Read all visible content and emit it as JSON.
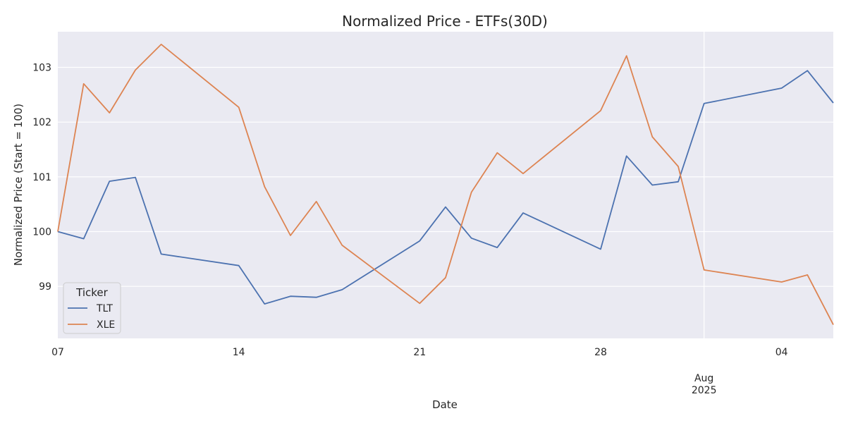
{
  "chart_data": {
    "type": "line",
    "title": "Normalized Price - ETFs(30D)",
    "xlabel": "Date",
    "ylabel": "Normalized Price (Start = 100)",
    "x": [
      "2025-07-07",
      "2025-07-08",
      "2025-07-09",
      "2025-07-10",
      "2025-07-11",
      "2025-07-14",
      "2025-07-15",
      "2025-07-16",
      "2025-07-17",
      "2025-07-18",
      "2025-07-21",
      "2025-07-22",
      "2025-07-23",
      "2025-07-24",
      "2025-07-25",
      "2025-07-28",
      "2025-07-29",
      "2025-07-30",
      "2025-07-31",
      "2025-08-01",
      "2025-08-04",
      "2025-08-05",
      "2025-08-06"
    ],
    "series": [
      {
        "name": "TLT",
        "color": "#4c72b0",
        "values": [
          100.0,
          99.87,
          100.92,
          100.99,
          99.59,
          99.38,
          98.68,
          98.82,
          98.8,
          98.94,
          99.83,
          100.45,
          99.88,
          99.71,
          100.34,
          99.68,
          101.38,
          100.85,
          100.91,
          102.34,
          102.62,
          102.94,
          102.35
        ]
      },
      {
        "name": "XLE",
        "color": "#dd8452",
        "values": [
          100.0,
          102.7,
          102.17,
          102.95,
          103.42,
          102.27,
          100.82,
          99.93,
          100.55,
          99.75,
          98.69,
          99.16,
          100.72,
          101.44,
          101.06,
          102.21,
          103.21,
          101.73,
          101.19,
          99.3,
          99.08,
          99.21,
          98.3
        ]
      }
    ],
    "x_ticks": [
      {
        "date": "2025-07-07",
        "label": "07"
      },
      {
        "date": "2025-07-14",
        "label": "14"
      },
      {
        "date": "2025-07-21",
        "label": "21"
      },
      {
        "date": "2025-07-28",
        "label": "28"
      },
      {
        "date": "2025-08-04",
        "label": "04"
      }
    ],
    "x_month_tick": {
      "date": "2025-08-01",
      "label1": "Aug",
      "label2": "2025"
    },
    "y_ticks": [
      99,
      100,
      101,
      102,
      103
    ],
    "ylim": [
      98.05,
      103.65
    ],
    "xlim": [
      "2025-07-07",
      "2025-08-06"
    ],
    "legend": {
      "title": "Ticker",
      "position": "lower-left"
    },
    "grid": true,
    "background": "#eaeaf2"
  }
}
